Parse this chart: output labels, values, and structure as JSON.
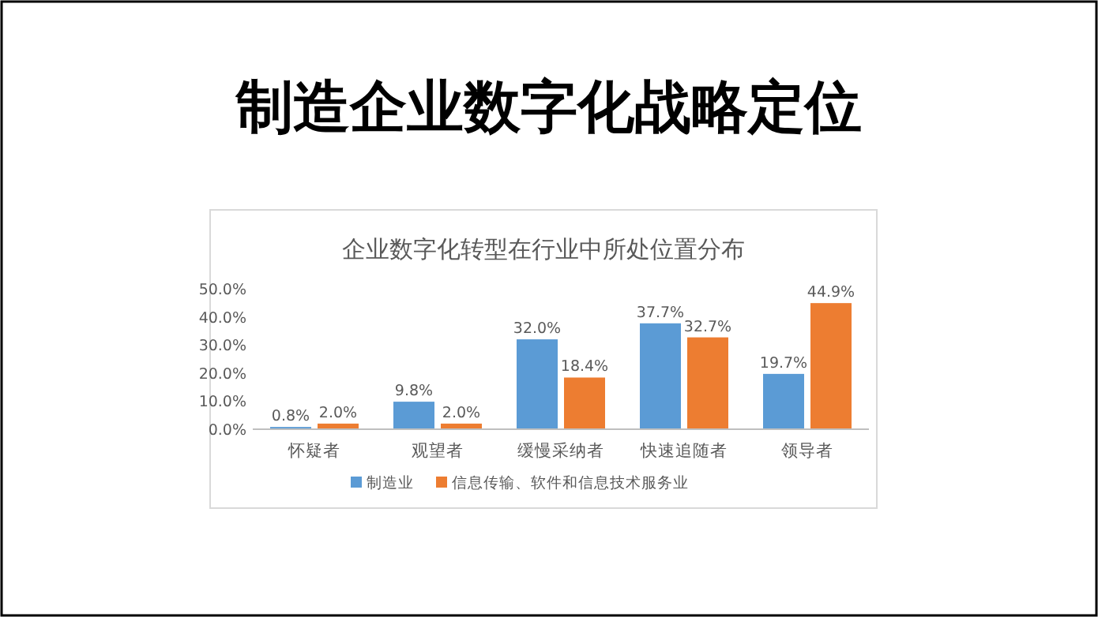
{
  "chart_data": {
    "type": "bar",
    "title": "制造企业数字化战略定位",
    "subtitle": "企业数字化转型在行业中所处位置分布",
    "categories": [
      "怀疑者",
      "观望者",
      "缓慢采纳者",
      "快速追随者",
      "领导者"
    ],
    "series": [
      {
        "name": "制造业",
        "color": "#5b9bd5",
        "values": [
          0.8,
          9.8,
          32.0,
          37.7,
          19.7
        ],
        "value_labels": [
          "0.8%",
          "9.8%",
          "32.0%",
          "37.7%",
          "19.7%"
        ]
      },
      {
        "name": "信息传输、软件和信息技术服务业",
        "color": "#ed7d31",
        "values": [
          2.0,
          2.0,
          18.4,
          32.7,
          44.9
        ],
        "value_labels": [
          "2.0%",
          "2.0%",
          "18.4%",
          "32.7%",
          "44.9%"
        ]
      }
    ],
    "ylim": [
      0,
      50
    ],
    "yticks": [
      {
        "value": 0,
        "label": "0.0%"
      },
      {
        "value": 10,
        "label": "10.0%"
      },
      {
        "value": 20,
        "label": "20.0%"
      },
      {
        "value": 30,
        "label": "30.0%"
      },
      {
        "value": 40,
        "label": "40.0%"
      },
      {
        "value": 50,
        "label": "50.0%"
      }
    ],
    "grid": false,
    "legend": "bottom"
  }
}
